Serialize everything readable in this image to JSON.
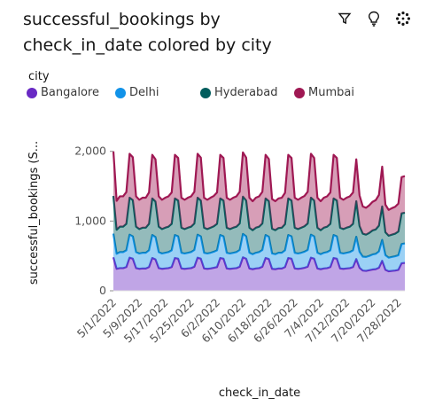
{
  "header": {
    "title_line1": "successful_bookings by",
    "title_line2": "check_in_date colored by city"
  },
  "toolbar": {
    "icons": [
      "filter-icon",
      "lightbulb-icon",
      "more-options-icon"
    ]
  },
  "colors": {
    "Bangalore": "#6929c4",
    "Delhi": "#1192e8",
    "Hyderabad": "#005d5d",
    "Mumbai": "#9f1853"
  },
  "chart_data": {
    "type": "area",
    "stacked": true,
    "title": "successful_bookings by check_in_date colored by city",
    "xlabel": "check_in_date",
    "ylabel": "successful_bookings (S...",
    "legend_title": "city",
    "legend_position": "top-left",
    "ylim": [
      0,
      2200
    ],
    "yticks": [
      0,
      1000,
      2000
    ],
    "ytick_labels": [
      "0",
      "1,000",
      "2,000"
    ],
    "grid": false,
    "x_start": "5/1/2022",
    "x_end": "7/31/2022",
    "xtick_labels": [
      "5/1/2022",
      "5/9/2022",
      "5/17/2022",
      "5/25/2022",
      "6/2/2022",
      "6/10/2022",
      "6/18/2022",
      "6/26/2022",
      "7/4/2022",
      "7/12/2022",
      "7/20/2022",
      "7/28/2022"
    ],
    "series": [
      {
        "name": "Bangalore",
        "values": [
          480,
          315,
          325,
          325,
          340,
          475,
          460,
          325,
          315,
          320,
          320,
          340,
          470,
          450,
          325,
          315,
          320,
          325,
          340,
          470,
          460,
          320,
          315,
          320,
          325,
          345,
          475,
          460,
          320,
          315,
          320,
          330,
          340,
          470,
          460,
          320,
          315,
          320,
          325,
          345,
          480,
          460,
          320,
          310,
          320,
          325,
          345,
          470,
          455,
          315,
          310,
          320,
          320,
          340,
          470,
          460,
          320,
          315,
          320,
          330,
          345,
          475,
          460,
          320,
          310,
          320,
          325,
          340,
          470,
          460,
          320,
          315,
          320,
          325,
          340,
          455,
          330,
          290,
          285,
          295,
          305,
          310,
          330,
          430,
          300,
          280,
          285,
          290,
          300,
          395,
          400
        ]
      },
      {
        "name": "Delhi",
        "values": [
          340,
          215,
          230,
          230,
          240,
          330,
          320,
          230,
          220,
          225,
          225,
          240,
          330,
          320,
          230,
          220,
          225,
          230,
          240,
          330,
          320,
          225,
          220,
          225,
          230,
          240,
          330,
          320,
          225,
          220,
          225,
          230,
          240,
          330,
          320,
          225,
          220,
          225,
          230,
          240,
          335,
          320,
          225,
          215,
          225,
          230,
          240,
          330,
          320,
          220,
          215,
          225,
          225,
          240,
          330,
          320,
          225,
          220,
          225,
          230,
          240,
          330,
          320,
          225,
          215,
          225,
          230,
          240,
          330,
          320,
          225,
          220,
          225,
          230,
          240,
          320,
          230,
          200,
          200,
          205,
          215,
          220,
          235,
          300,
          210,
          195,
          200,
          205,
          210,
          275,
          280
        ]
      },
      {
        "name": "Hyderabad",
        "values": [
          540,
          345,
          365,
          365,
          380,
          530,
          520,
          365,
          350,
          360,
          360,
          380,
          525,
          510,
          365,
          350,
          360,
          365,
          380,
          525,
          515,
          360,
          350,
          360,
          365,
          380,
          530,
          515,
          360,
          350,
          360,
          365,
          380,
          525,
          515,
          360,
          350,
          360,
          365,
          380,
          535,
          515,
          360,
          345,
          360,
          365,
          380,
          525,
          510,
          355,
          345,
          355,
          360,
          375,
          525,
          515,
          360,
          350,
          360,
          365,
          380,
          530,
          515,
          360,
          345,
          360,
          365,
          380,
          525,
          515,
          360,
          350,
          360,
          365,
          380,
          510,
          370,
          330,
          320,
          330,
          345,
          350,
          370,
          480,
          330,
          315,
          320,
          325,
          340,
          440,
          440
        ]
      },
      {
        "name": "Mumbai",
        "values": [
          640,
          415,
          435,
          435,
          455,
          630,
          615,
          435,
          420,
          430,
          430,
          450,
          625,
          605,
          435,
          420,
          430,
          435,
          450,
          625,
          610,
          430,
          420,
          430,
          435,
          455,
          630,
          615,
          430,
          420,
          430,
          435,
          450,
          625,
          610,
          430,
          420,
          430,
          435,
          455,
          635,
          615,
          430,
          415,
          430,
          435,
          455,
          625,
          605,
          425,
          415,
          425,
          430,
          450,
          625,
          610,
          430,
          420,
          430,
          435,
          455,
          630,
          610,
          430,
          415,
          430,
          435,
          450,
          625,
          610,
          430,
          420,
          430,
          435,
          450,
          600,
          440,
          390,
          385,
          395,
          410,
          420,
          440,
          570,
          395,
          370,
          380,
          385,
          400,
          520,
          525
        ]
      }
    ]
  }
}
